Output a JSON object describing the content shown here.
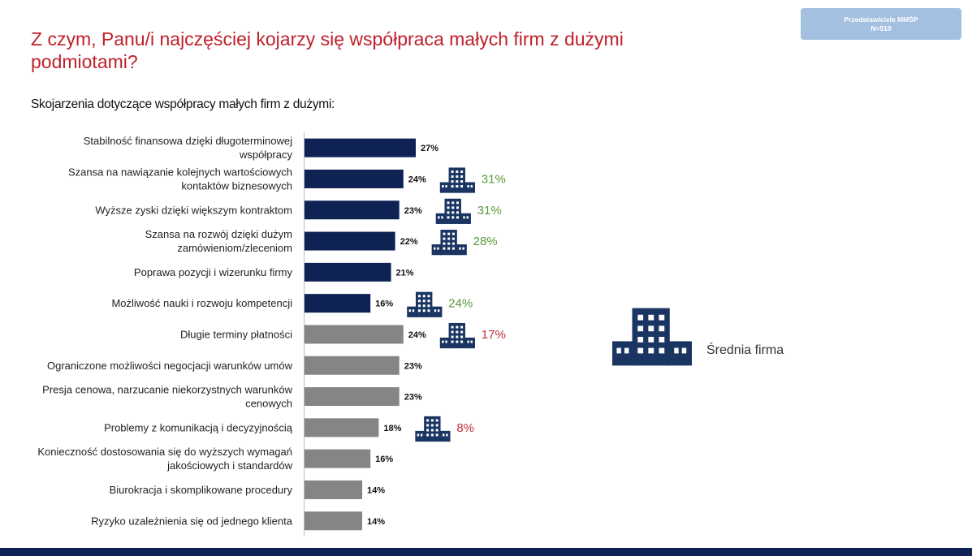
{
  "title": "Z czym, Panu/i najczęściej kojarzy się współpraca małych firm z dużymi podmiotami?",
  "badge": {
    "line1": "Przedstawiciele MMŚP",
    "line2": "N=519"
  },
  "subtitle": "Skojarzenia dotyczące współpracy małych firm z dużymi:",
  "legend": {
    "label": "Średnia firma",
    "icon": "building-icon"
  },
  "colors": {
    "positive_bar": "#0f2254",
    "negative_bar": "#858585",
    "compare_positive": "#5a9a3c",
    "compare_negative": "#c0303a",
    "icon": "#1b3563"
  },
  "chart_data": {
    "type": "bar",
    "orientation": "horizontal",
    "unit": "%",
    "categories": [
      [
        "Stabilność finansowa dzięki długoterminowej",
        "współpracy"
      ],
      [
        "Szansa na nawiązanie kolejnych wartościowych",
        "kontaktów biznesowych"
      ],
      [
        "Wyższe zyski dzięki większym kontraktom"
      ],
      [
        "Szansa na rozwój dzięki dużym",
        "zamówieniom/zleceniom"
      ],
      [
        "Poprawa pozycji i wizerunku firmy"
      ],
      [
        "Możliwość nauki i rozwoju kompetencji"
      ],
      [
        "Długie terminy płatności"
      ],
      [
        "Ograniczone możliwości negocjacji warunków umów"
      ],
      [
        "Presja cenowa, narzucanie niekorzystnych warunków",
        "cenowych"
      ],
      [
        "Problemy z komunikacją i decyzyjnością"
      ],
      [
        "Konieczność dostosowania się do wyższych wymagań",
        "jakościowych i standardów"
      ],
      [
        "Biurokracja i skomplikowane procedury"
      ],
      [
        "Ryzyko uzależnienia się od jednego klienta"
      ]
    ],
    "values": [
      27,
      24,
      23,
      22,
      21,
      16,
      24,
      23,
      23,
      18,
      16,
      14,
      14
    ],
    "value_labels": [
      "27%",
      "24%",
      "23%",
      "22%",
      "21%",
      "16%",
      "24%",
      "23%",
      "23%",
      "18%",
      "16%",
      "14%",
      "14%"
    ],
    "sentiment": [
      "positive",
      "positive",
      "positive",
      "positive",
      "positive",
      "positive",
      "negative",
      "negative",
      "negative",
      "negative",
      "negative",
      "negative",
      "negative"
    ],
    "comparison": {
      "series_name": "Średnia firma",
      "values": [
        null,
        31,
        31,
        28,
        null,
        24,
        17,
        null,
        null,
        8,
        null,
        null,
        null
      ],
      "labels": [
        "",
        "31%",
        "31%",
        "28%",
        "",
        "24%",
        "17%",
        "",
        "",
        "8%",
        "",
        "",
        ""
      ]
    },
    "xlim": [
      0,
      27
    ],
    "grid": false,
    "legend_position": "right"
  }
}
